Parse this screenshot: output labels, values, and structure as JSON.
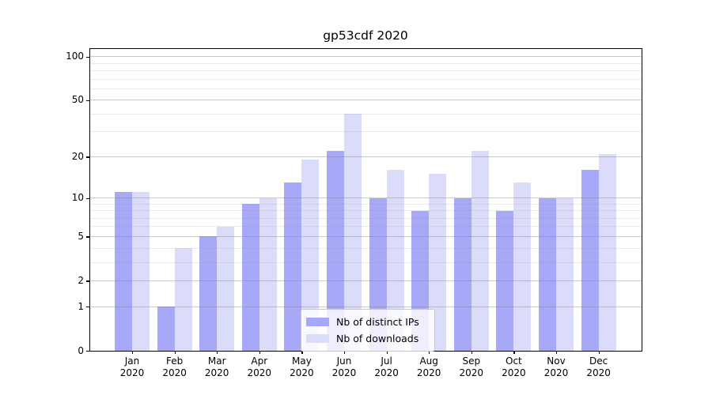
{
  "figure": {
    "background": "#ffffff"
  },
  "chart_data": {
    "type": "bar",
    "title": "gp53cdf 2020",
    "categories": [
      "Jan 2020",
      "Feb 2020",
      "Mar 2020",
      "Apr 2020",
      "May 2020",
      "Jun 2020",
      "Jul 2020",
      "Aug 2020",
      "Sep 2020",
      "Oct 2020",
      "Nov 2020",
      "Dec 2020"
    ],
    "series": [
      {
        "name": "Nb of distinct IPs",
        "color": "#a8a8f8",
        "values": [
          11,
          1,
          5,
          9,
          13,
          22,
          10,
          8,
          10,
          8,
          10,
          16
        ]
      },
      {
        "name": "Nb of downloads",
        "color": "#dbdbfa",
        "values": [
          11,
          4,
          6,
          10,
          19,
          40,
          16,
          15,
          22,
          13,
          10,
          21
        ]
      }
    ],
    "xlabel": "",
    "ylabel": "",
    "yscale": "log1p",
    "ylim": [
      0,
      113
    ],
    "yticks": [
      0,
      1,
      2,
      5,
      10,
      20,
      50,
      100
    ],
    "yminorticks": [
      3,
      4,
      6,
      7,
      8,
      9,
      30,
      40,
      60,
      70,
      80,
      90
    ],
    "grid": "horizontal",
    "legend_position": "lower-center",
    "spine_color": "#000000",
    "grid_major_color": "#cbcbcb",
    "grid_minor_color": "#e6e6e6"
  }
}
